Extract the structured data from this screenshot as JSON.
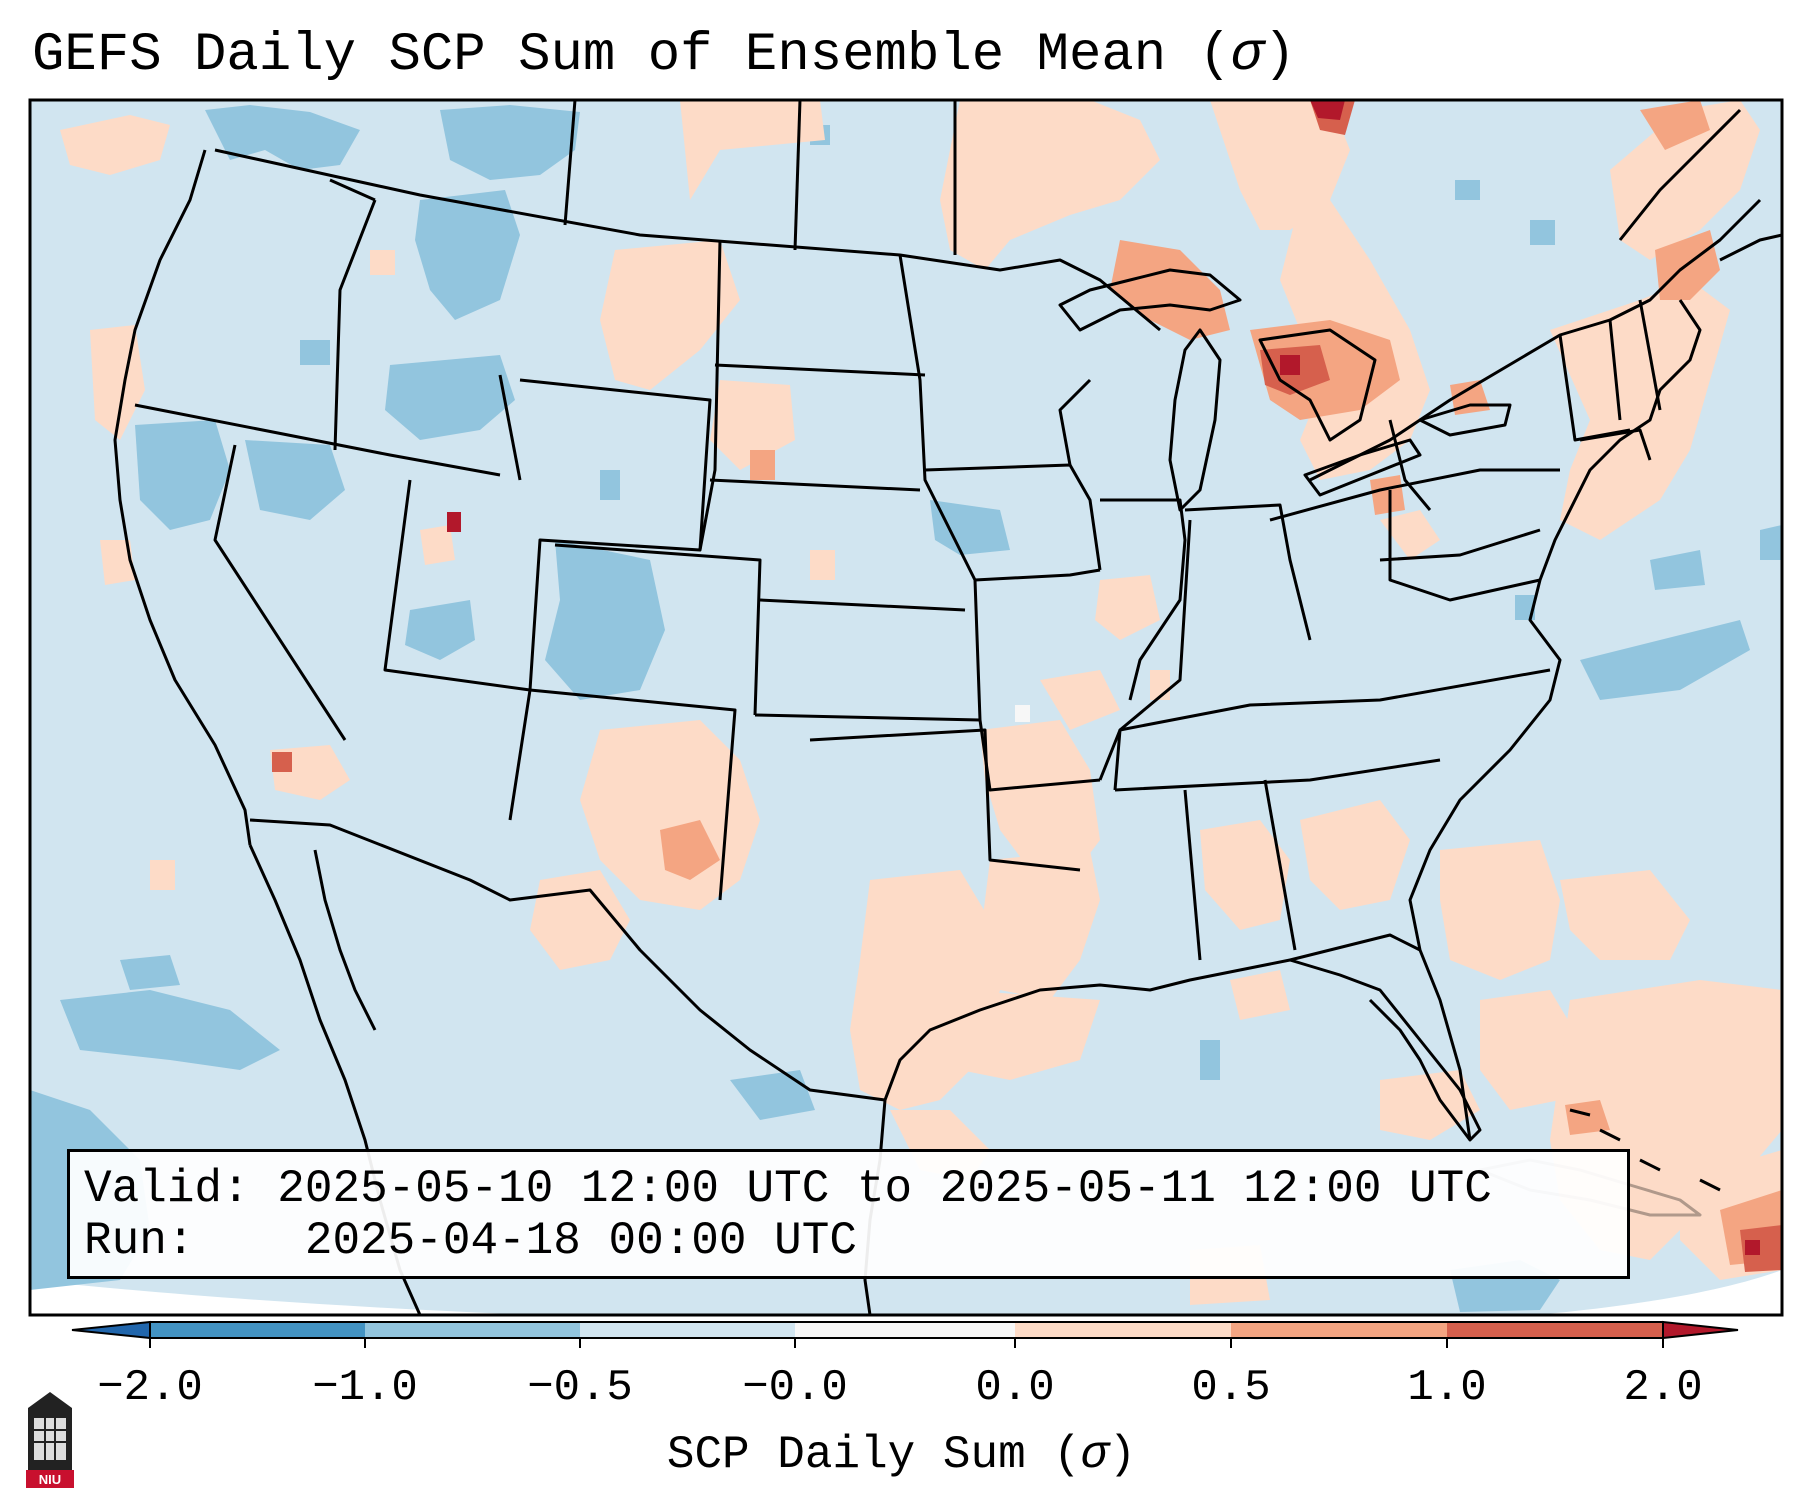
{
  "title": {
    "main": "GEFS Daily SCP Sum of Ensemble Mean (",
    "sigma": "σ",
    "close": ")"
  },
  "info_box": {
    "valid_label": "Valid:",
    "valid_value": "2025-05-10 12:00 UTC to 2025-05-11 12:00 UTC",
    "run_label": "Run:",
    "run_value": "2025-04-18 00:00 UTC"
  },
  "colorbar": {
    "label_text": "SCP Daily Sum (",
    "label_sigma": "σ",
    "label_close": ")",
    "tick_labels": [
      "−2.0",
      "−1.0",
      "−0.5",
      "−0.0",
      "0.0",
      "0.5",
      "1.0",
      "2.0"
    ],
    "bins": [
      {
        "range": "< -2.0",
        "color": "#2166ac"
      },
      {
        "range": "-2.0 to -1.0",
        "color": "#4393c3"
      },
      {
        "range": "-1.0 to -0.5",
        "color": "#92c5de"
      },
      {
        "range": "-0.5 to -0.0",
        "color": "#d1e5f0"
      },
      {
        "range": "-0.0 to 0.0",
        "color": "#f7f7f7"
      },
      {
        "range": "0.0 to 0.5",
        "color": "#fddbc7"
      },
      {
        "range": "0.5 to 1.0",
        "color": "#f4a582"
      },
      {
        "range": "1.0 to 2.0",
        "color": "#d6604d"
      },
      {
        "range": "> 2.0",
        "color": "#b2182b"
      }
    ],
    "extend": "both"
  },
  "map": {
    "region": "CONUS",
    "background_color": "#d1e5f0",
    "outside_projection_color": "#ffffff",
    "border_color": "#000000"
  },
  "logo": {
    "text": "NIU",
    "color": "#c8102e"
  }
}
